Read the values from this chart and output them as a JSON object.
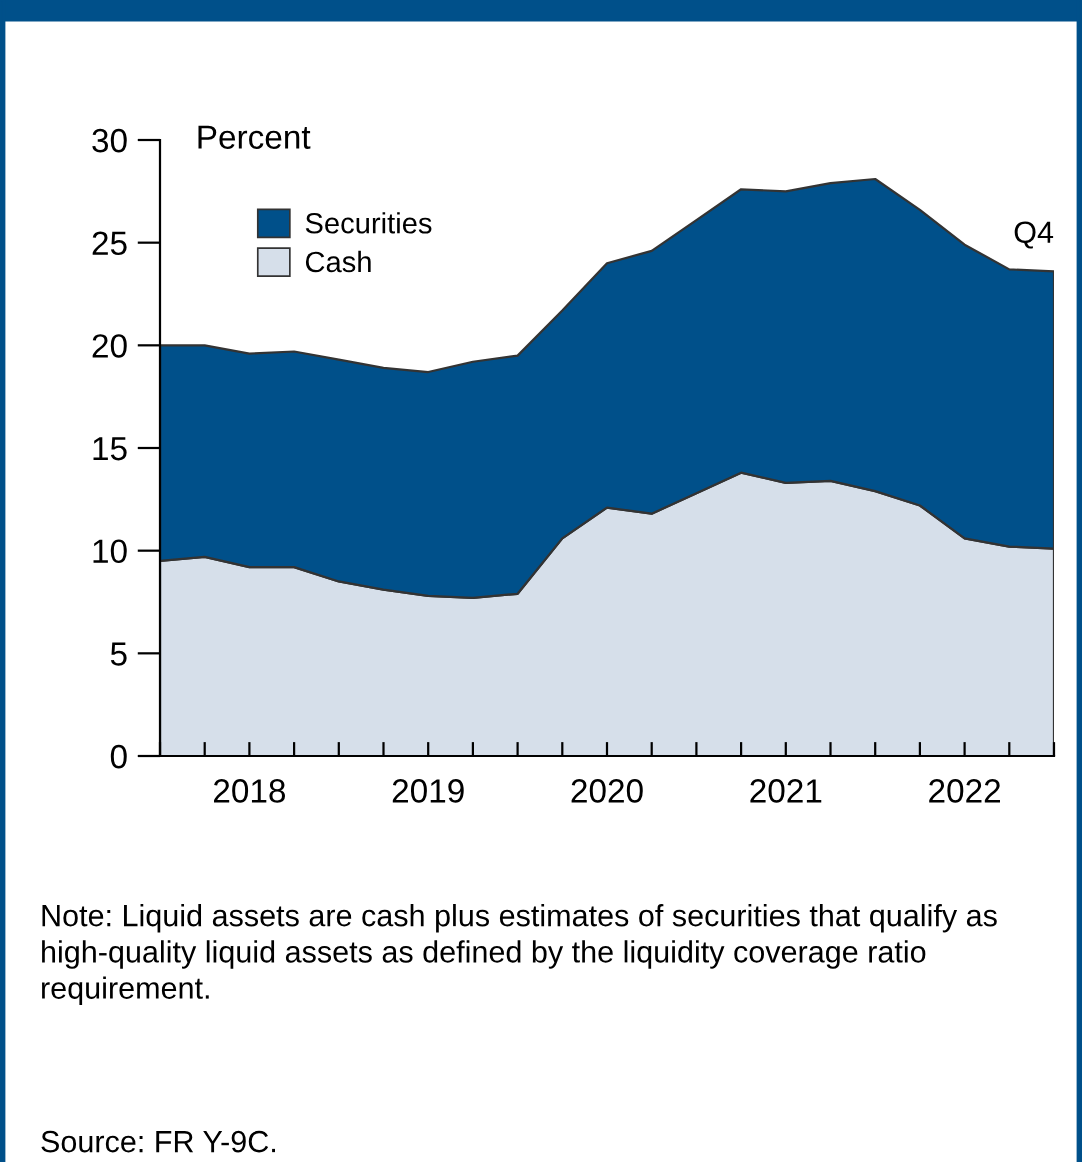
{
  "chart_data": {
    "type": "area",
    "stacked": true,
    "x": [
      2018.0,
      2018.25,
      2018.5,
      2018.75,
      2019.0,
      2019.25,
      2019.5,
      2019.75,
      2020.0,
      2020.25,
      2020.5,
      2020.75,
      2021.0,
      2021.25,
      2021.5,
      2021.75,
      2022.0,
      2022.25,
      2022.5,
      2022.75,
      2023.0
    ],
    "series": [
      {
        "name": "Cash",
        "color": "#d6dfea",
        "values": [
          9.5,
          9.7,
          9.2,
          9.2,
          8.5,
          8.1,
          7.8,
          7.7,
          7.9,
          10.6,
          12.1,
          11.8,
          12.8,
          13.8,
          13.3,
          13.4,
          12.9,
          12.2,
          10.6,
          10.2,
          10.1
        ]
      },
      {
        "name": "Securities",
        "color": "#00508a",
        "values": [
          10.5,
          10.3,
          10.4,
          10.5,
          10.8,
          10.8,
          10.9,
          11.5,
          11.6,
          11.1,
          11.9,
          12.8,
          13.3,
          13.8,
          14.2,
          14.5,
          15.2,
          14.4,
          14.3,
          13.5,
          13.5
        ]
      }
    ],
    "ylabel": "Percent",
    "ylim": [
      0,
      30
    ],
    "yticks": [
      0,
      5,
      10,
      15,
      20,
      25,
      30
    ],
    "xlim": [
      2018,
      2023
    ],
    "xticks": [
      {
        "value": 2018,
        "label": null
      },
      {
        "value": 2018.25,
        "label": null
      },
      {
        "value": 2018.5,
        "label": "2018"
      },
      {
        "value": 2018.75,
        "label": null
      },
      {
        "value": 2019,
        "label": null
      },
      {
        "value": 2019.25,
        "label": null
      },
      {
        "value": 2019.5,
        "label": "2019"
      },
      {
        "value": 2019.75,
        "label": null
      },
      {
        "value": 2020,
        "label": null
      },
      {
        "value": 2020.25,
        "label": null
      },
      {
        "value": 2020.5,
        "label": "2020"
      },
      {
        "value": 2020.75,
        "label": null
      },
      {
        "value": 2021,
        "label": null
      },
      {
        "value": 2021.25,
        "label": null
      },
      {
        "value": 2021.5,
        "label": "2021"
      },
      {
        "value": 2021.75,
        "label": null
      },
      {
        "value": 2022,
        "label": null
      },
      {
        "value": 2022.25,
        "label": null
      },
      {
        "value": 2022.5,
        "label": "2022"
      },
      {
        "value": 2022.75,
        "label": null
      },
      {
        "value": 2023,
        "label": null
      }
    ],
    "legend": "top left",
    "grid": false,
    "annotations": [
      {
        "text": "Q4",
        "x": 2023,
        "y": 23.6
      },
      "Note: Liquid assets are cash plus estimates of securities that qualify as high-quality liquid assets as defined by the liquidity coverage ratio requirement.",
      "Source: FR Y-9C."
    ]
  }
}
